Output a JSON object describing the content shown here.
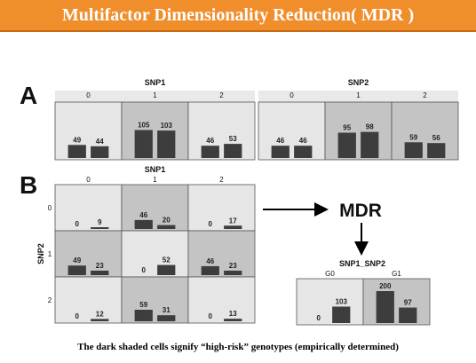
{
  "title": "Multifactor Dimensionality Reduction( MDR )",
  "caption": "The dark shaded cells signify “high-risk” genotypes (empirically determined)",
  "panel_a": {
    "letter": "A",
    "groups": [
      {
        "label": "SNP1",
        "cells": [
          {
            "label": "0",
            "values": [
              49,
              44
            ],
            "high_risk": false
          },
          {
            "label": "1",
            "values": [
              105,
              103
            ],
            "high_risk": true
          },
          {
            "label": "2",
            "values": [
              46,
              53
            ],
            "high_risk": false
          }
        ]
      },
      {
        "label": "SNP2",
        "cells": [
          {
            "label": "0",
            "values": [
              46,
              46
            ],
            "high_risk": false
          },
          {
            "label": "1",
            "values": [
              95,
              98
            ],
            "high_risk": true
          },
          {
            "label": "2",
            "values": [
              59,
              56
            ],
            "high_risk": true
          }
        ]
      }
    ]
  },
  "panel_b": {
    "letter": "B",
    "col_title": "SNP1",
    "row_title": "SNP2",
    "col_labels": [
      "0",
      "1",
      "2"
    ],
    "row_labels": [
      "0",
      "1",
      "2"
    ],
    "cells": [
      [
        {
          "values": [
            0,
            9
          ],
          "high_risk": false
        },
        {
          "values": [
            46,
            20
          ],
          "high_risk": true
        },
        {
          "values": [
            0,
            17
          ],
          "high_risk": false
        }
      ],
      [
        {
          "values": [
            49,
            23
          ],
          "high_risk": true
        },
        {
          "values": [
            0,
            52
          ],
          "high_risk": false
        },
        {
          "values": [
            46,
            23
          ],
          "high_risk": true
        }
      ],
      [
        {
          "values": [
            0,
            12
          ],
          "high_risk": false
        },
        {
          "values": [
            59,
            31
          ],
          "high_risk": true
        },
        {
          "values": [
            0,
            13
          ],
          "high_risk": false
        }
      ]
    ]
  },
  "mdr": {
    "label": "MDR",
    "result_title": "SNP1_SNP2",
    "cells": [
      {
        "label": "G0",
        "values": [
          0,
          103
        ],
        "high_risk": false
      },
      {
        "label": "G1",
        "values": [
          200,
          97
        ],
        "high_risk": true
      }
    ]
  },
  "colors": {
    "banner": "#f08e2c",
    "cell_light": "#e6e6e6",
    "cell_dark": "#c4c4c4",
    "bar": "#3d3d3d",
    "grid": "#555555"
  }
}
